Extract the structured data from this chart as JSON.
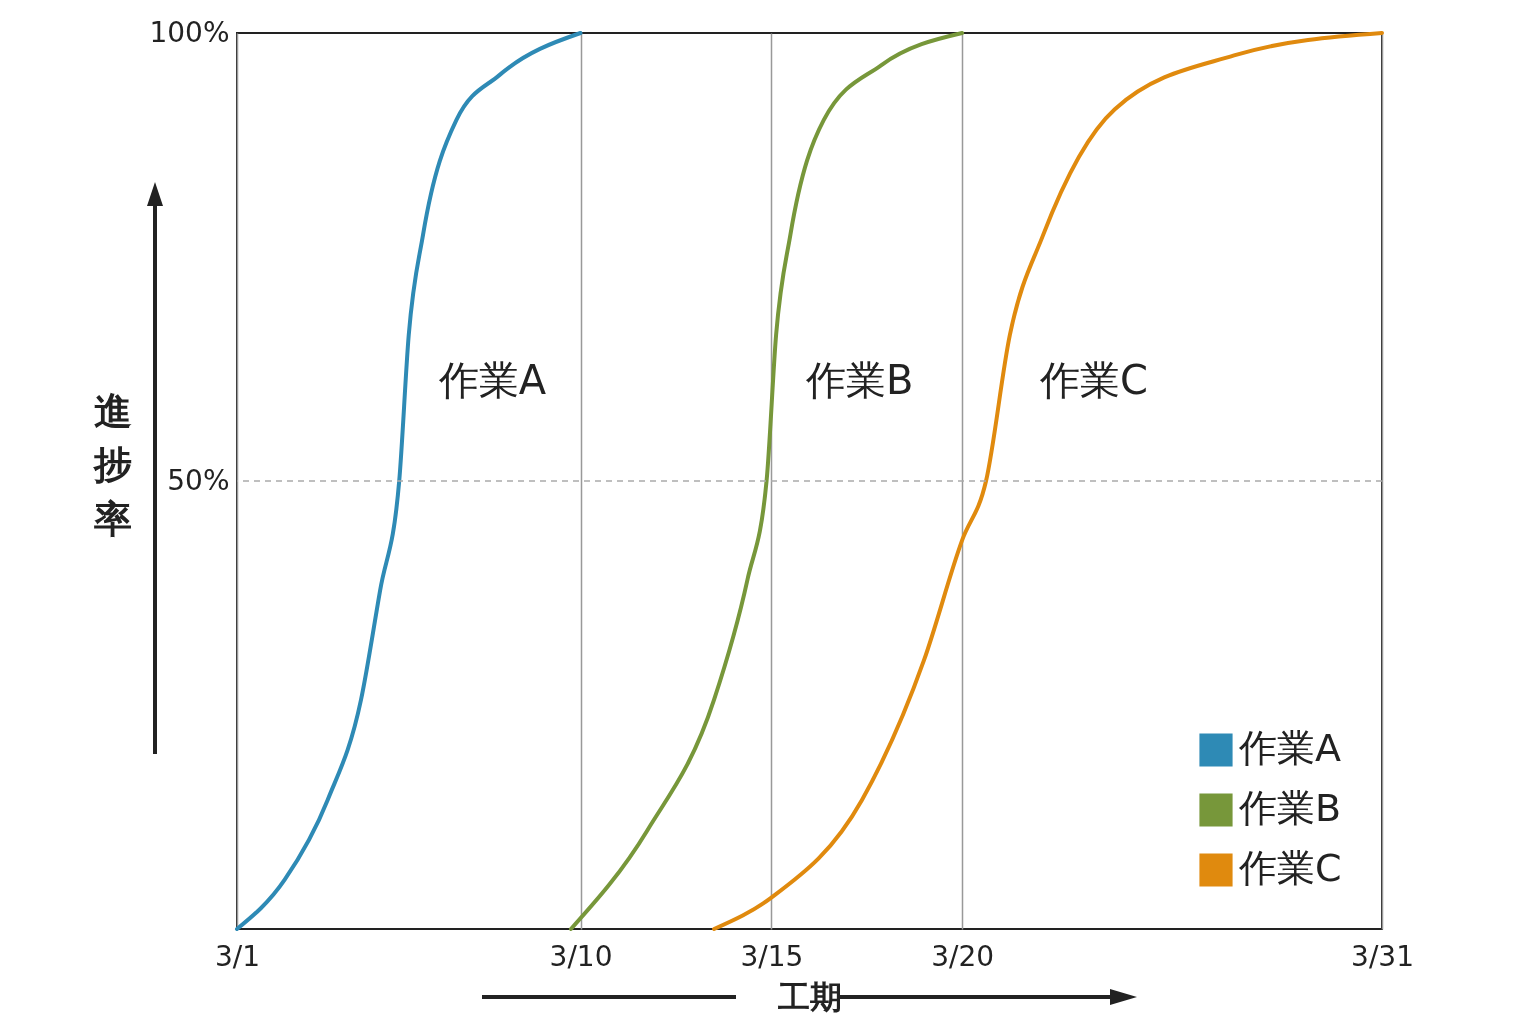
{
  "chart_data": {
    "type": "line",
    "xlabel": "工期",
    "ylabel": "進捗率",
    "xlim": [
      "--03-01",
      "--03-31"
    ],
    "xticks": [
      {
        "value": "--03-01",
        "label": "3/1"
      },
      {
        "value": "--03-10",
        "label": "3/10"
      },
      {
        "value": "--03-15",
        "label": "3/15"
      },
      {
        "value": "--03-20",
        "label": "3/20"
      },
      {
        "value": "--03-31",
        "label": "3/31"
      }
    ],
    "ylim": [
      0,
      100
    ],
    "yticks": [
      {
        "value": 50,
        "label": "50%"
      },
      {
        "value": 100,
        "label": "100%"
      }
    ],
    "grid": "x",
    "legend": "bottom right",
    "marker": "none",
    "line_style": "solid",
    "ref_lines": [
      {
        "axis": "y",
        "value": 50,
        "line_style": "dashed",
        "color": "#aaaaaa"
      }
    ],
    "series": [
      {
        "name": "作業A",
        "color": "#2e8ab5",
        "x": [
          "--03-01",
          "--03-02T06:00",
          "--03-03T09:00",
          "--03-04T06:00",
          "--03-04T18:00",
          "--03-05T06:00",
          "--03-05T12:00",
          "--03-05T21:00",
          "--03-06T18:00",
          "--03-07T21:00",
          "--03-10"
        ],
        "values": [
          0,
          5.5,
          14.4,
          25.6,
          37.8,
          50,
          66.3,
          77.5,
          90.3,
          95.3,
          100
        ]
      },
      {
        "name": "作業B",
        "color": "#77973a",
        "x": [
          "--03-09T18:00",
          "--03-11T18:00",
          "--03-13T12:00",
          "--03-14T09:00",
          "--03-14T21:00",
          "--03-15T03:00",
          "--03-15T12:00",
          "--03-16T09:00",
          "--03-17T21:00",
          "--03-20"
        ],
        "values": [
          0,
          11,
          25.6,
          39,
          50,
          66.3,
          77.5,
          90.3,
          96.4,
          100
        ]
      },
      {
        "name": "作業C",
        "color": "#e08a0e",
        "x": [
          "--03-13T12:00",
          "--03-15",
          "--03-17T09:00",
          "--03-19",
          "--03-20",
          "--03-20T15:00",
          "--03-21T06:00",
          "--03-22T03:00",
          "--03-24",
          "--03-27T03:00",
          "--03-31"
        ],
        "values": [
          0,
          3.5,
          14.4,
          30,
          43.4,
          50,
          66.3,
          77.5,
          91.5,
          97.5,
          100
        ]
      }
    ]
  }
}
